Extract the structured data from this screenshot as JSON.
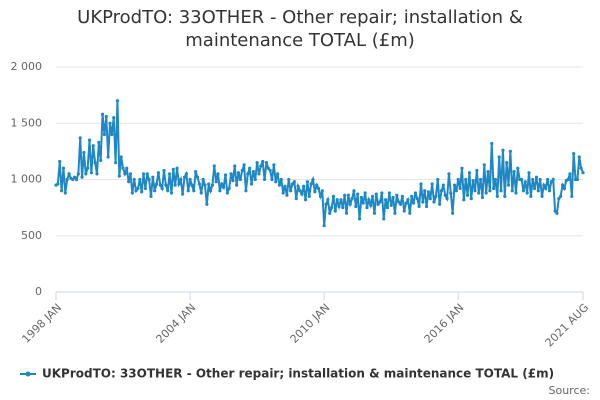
{
  "chart_data": {
    "type": "line",
    "title": "UKProdTO: 33OTHER - Other repair; installation & maintenance TOTAL (£m)",
    "source": "Source:",
    "categories": [
      "1998 JAN",
      null,
      null,
      null,
      null,
      null,
      null,
      null,
      null,
      null,
      null,
      null,
      null,
      null,
      null,
      null,
      null,
      null,
      null,
      null,
      null,
      null,
      null,
      null,
      null,
      null,
      null,
      null,
      null,
      null,
      null,
      null,
      null,
      null,
      null,
      null,
      null,
      null,
      null,
      null,
      null,
      null,
      null,
      null,
      null,
      null,
      null,
      null,
      null,
      null,
      null,
      null,
      null,
      null,
      null,
      null,
      null,
      null,
      null,
      null,
      null,
      null,
      null,
      null,
      null,
      null,
      null,
      null,
      null,
      null,
      null,
      null,
      "2004 JAN",
      null,
      null,
      null,
      null,
      null,
      null,
      null,
      null,
      null,
      null,
      null,
      null,
      null,
      null,
      null,
      null,
      null,
      null,
      null,
      null,
      null,
      null,
      null,
      null,
      null,
      null,
      null,
      null,
      null,
      null,
      null,
      null,
      null,
      null,
      null,
      null,
      null,
      null,
      null,
      null,
      null,
      null,
      null,
      null,
      null,
      null,
      null,
      null,
      null,
      null,
      null,
      null,
      null,
      null,
      null,
      null,
      null,
      null,
      null,
      null,
      null,
      null,
      null,
      null,
      null,
      null,
      null,
      null,
      null,
      null,
      null,
      "2010 JAN",
      null,
      null,
      null,
      null,
      null,
      null,
      null,
      null,
      null,
      null,
      null,
      null,
      null,
      null,
      null,
      null,
      null,
      null,
      null,
      null,
      null,
      null,
      null,
      null,
      null,
      null,
      null,
      null,
      null,
      null,
      null,
      null,
      null,
      null,
      null,
      null,
      null,
      null,
      null,
      null,
      null,
      null,
      null,
      null,
      null,
      null,
      null,
      null,
      null,
      null,
      null,
      null,
      null,
      null,
      null,
      null,
      null,
      null,
      null,
      null,
      null,
      null,
      null,
      null,
      null,
      null,
      null,
      null,
      null,
      null,
      null,
      "2016 JAN",
      null,
      null,
      null,
      null,
      null,
      null,
      null,
      null,
      null,
      null,
      null,
      null,
      null,
      null,
      null,
      null,
      null,
      null,
      null,
      null,
      null,
      null,
      null,
      null,
      null,
      null,
      null,
      null,
      null,
      null,
      null,
      null,
      null,
      null,
      null,
      null,
      null,
      null,
      null,
      null,
      null,
      null,
      null,
      null,
      null,
      null,
      null,
      null,
      null,
      null,
      null,
      null,
      null,
      null,
      null,
      null,
      null,
      null,
      null,
      null,
      null,
      null,
      null,
      null,
      null,
      null,
      "2021 AUG"
    ],
    "series": [
      {
        "name": "UKProdTO: 33OTHER - Other repair; installation & maintenance TOTAL (£m)",
        "color": "#1f88c4",
        "values": [
          950,
          960,
          1160,
          900,
          1100,
          880,
          1000,
          1050,
          1010,
          1000,
          1020,
          1000,
          1050,
          1370,
          1020,
          1240,
          1050,
          1100,
          1350,
          1060,
          1300,
          1150,
          1050,
          1330,
          1170,
          1580,
          1400,
          1560,
          1200,
          1500,
          1400,
          1550,
          1150,
          1700,
          1030,
          1200,
          1100,
          1050,
          1100,
          980,
          1050,
          880,
          1000,
          900,
          920,
          1000,
          890,
          1050,
          920,
          1050,
          1000,
          850,
          1020,
          900,
          960,
          1060,
          950,
          920,
          1080,
          950,
          900,
          1050,
          880,
          1090,
          950,
          1100,
          960,
          1000,
          870,
          1020,
          1050,
          900,
          1000,
          950,
          900,
          1070,
          1020,
          960,
          880,
          1000,
          950,
          780,
          960,
          900,
          950,
          1120,
          980,
          1050,
          900,
          960,
          930,
          1040,
          880,
          920,
          1050,
          990,
          1120,
          950,
          1060,
          1000,
          1080,
          1130,
          900,
          1050,
          1100,
          960,
          1070,
          1000,
          1150,
          1050,
          1120,
          1160,
          1000,
          1150,
          1100,
          1080,
          1000,
          1130,
          980,
          1050,
          950,
          1000,
          880,
          940,
          860,
          1000,
          900,
          960,
          980,
          830,
          940,
          900,
          870,
          940,
          820,
          980,
          850,
          960,
          1000,
          890,
          950,
          920,
          850,
          900,
          590,
          780,
          820,
          700,
          750,
          850,
          720,
          820,
          760,
          820,
          750,
          860,
          700,
          860,
          780,
          830,
          900,
          760,
          870,
          650,
          840,
          790,
          880,
          750,
          820,
          770,
          850,
          700,
          870,
          780,
          800,
          880,
          650,
          820,
          750,
          880,
          770,
          840,
          700,
          860,
          800,
          780,
          850,
          720,
          790,
          820,
          700,
          850,
          790,
          880,
          830,
          760,
          960,
          800,
          900,
          760,
          890,
          830,
          960,
          800,
          850,
          1000,
          780,
          900,
          950,
          860,
          830,
          1050,
          880,
          700,
          950,
          900,
          1000,
          920,
          1100,
          820,
          1000,
          860,
          1060,
          830,
          990,
          900,
          1080,
          880,
          1000,
          840,
          1130,
          880,
          1070,
          900,
          1320,
          920,
          1000,
          850,
          1200,
          900,
          1260,
          850,
          1150,
          950,
          1250,
          900,
          1070,
          880,
          1100,
          1000,
          1000,
          900,
          980,
          880,
          1060,
          850,
          1000,
          920,
          1020,
          900,
          1000,
          850,
          950,
          920,
          1000,
          900,
          980,
          1000,
          720,
          700,
          830,
          850,
          950,
          920,
          990,
          1000,
          1050,
          850,
          1230,
          1000,
          1000,
          1200,
          1100,
          1060
        ]
      }
    ],
    "ylim": [
      0,
      2000
    ],
    "yticks": [
      0,
      500,
      {
        "value": 1000,
        "label": "1 000"
      },
      {
        "value": 1500,
        "label": "1 500"
      },
      {
        "value": 2000,
        "label": "2 000"
      }
    ],
    "grid": true
  }
}
